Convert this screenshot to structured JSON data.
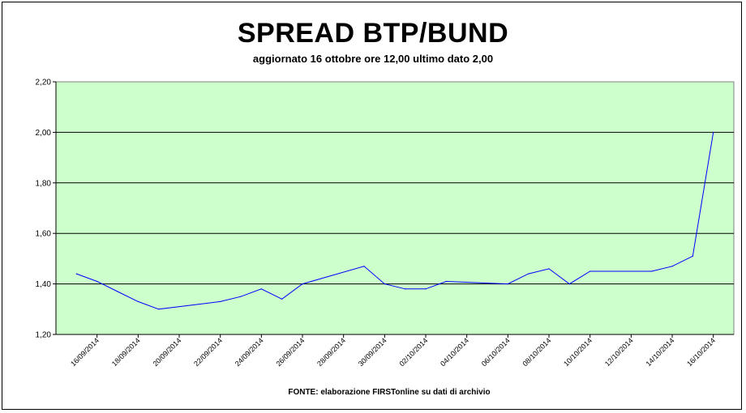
{
  "chart_data": {
    "type": "line",
    "title": "SPREAD BTP/BUND",
    "subtitle": "aggiornato 16 ottobre ore 12,00 ultimo dato 2,00",
    "source": "FONTE: elaborazione FIRSTonline su dati di archivio",
    "xlabel": "",
    "ylabel": "",
    "ylim": [
      1.2,
      2.2
    ],
    "y_ticks": [
      "1,20",
      "1,40",
      "1,60",
      "1,80",
      "2,00",
      "2,20"
    ],
    "x_tick_labels": [
      "16/09/2014",
      "18/09/2014",
      "20/09/2014",
      "22/09/2014",
      "24/09/2014",
      "26/09/2014",
      "28/09/2014",
      "30/09/2014",
      "02/10/2014",
      "04/10/2014",
      "06/10/2014",
      "08/10/2014",
      "10/10/2014",
      "12/10/2014",
      "14/10/2014",
      "16/10/2014"
    ],
    "x_start": "2014-09-14",
    "x_end": "2014-10-17",
    "grid": true,
    "plot_background": "#ccffcc",
    "line_color": "#0000ff",
    "series": [
      {
        "x": [
          "2014-09-15",
          "2014-09-16",
          "2014-09-17",
          "2014-09-18",
          "2014-09-19",
          "2014-09-22",
          "2014-09-23",
          "2014-09-24",
          "2014-09-25",
          "2014-09-26",
          "2014-09-29",
          "2014-09-30",
          "2014-10-01",
          "2014-10-02",
          "2014-10-03",
          "2014-10-06",
          "2014-10-07",
          "2014-10-08",
          "2014-10-09",
          "2014-10-10",
          "2014-10-13",
          "2014-10-14",
          "2014-10-15",
          "2014-10-16"
        ],
        "values": [
          1.44,
          1.41,
          1.37,
          1.33,
          1.3,
          1.33,
          1.35,
          1.38,
          1.34,
          1.4,
          1.47,
          1.4,
          1.38,
          1.38,
          1.41,
          1.4,
          1.44,
          1.46,
          1.4,
          1.45,
          1.45,
          1.47,
          1.51,
          2.0
        ]
      }
    ]
  }
}
